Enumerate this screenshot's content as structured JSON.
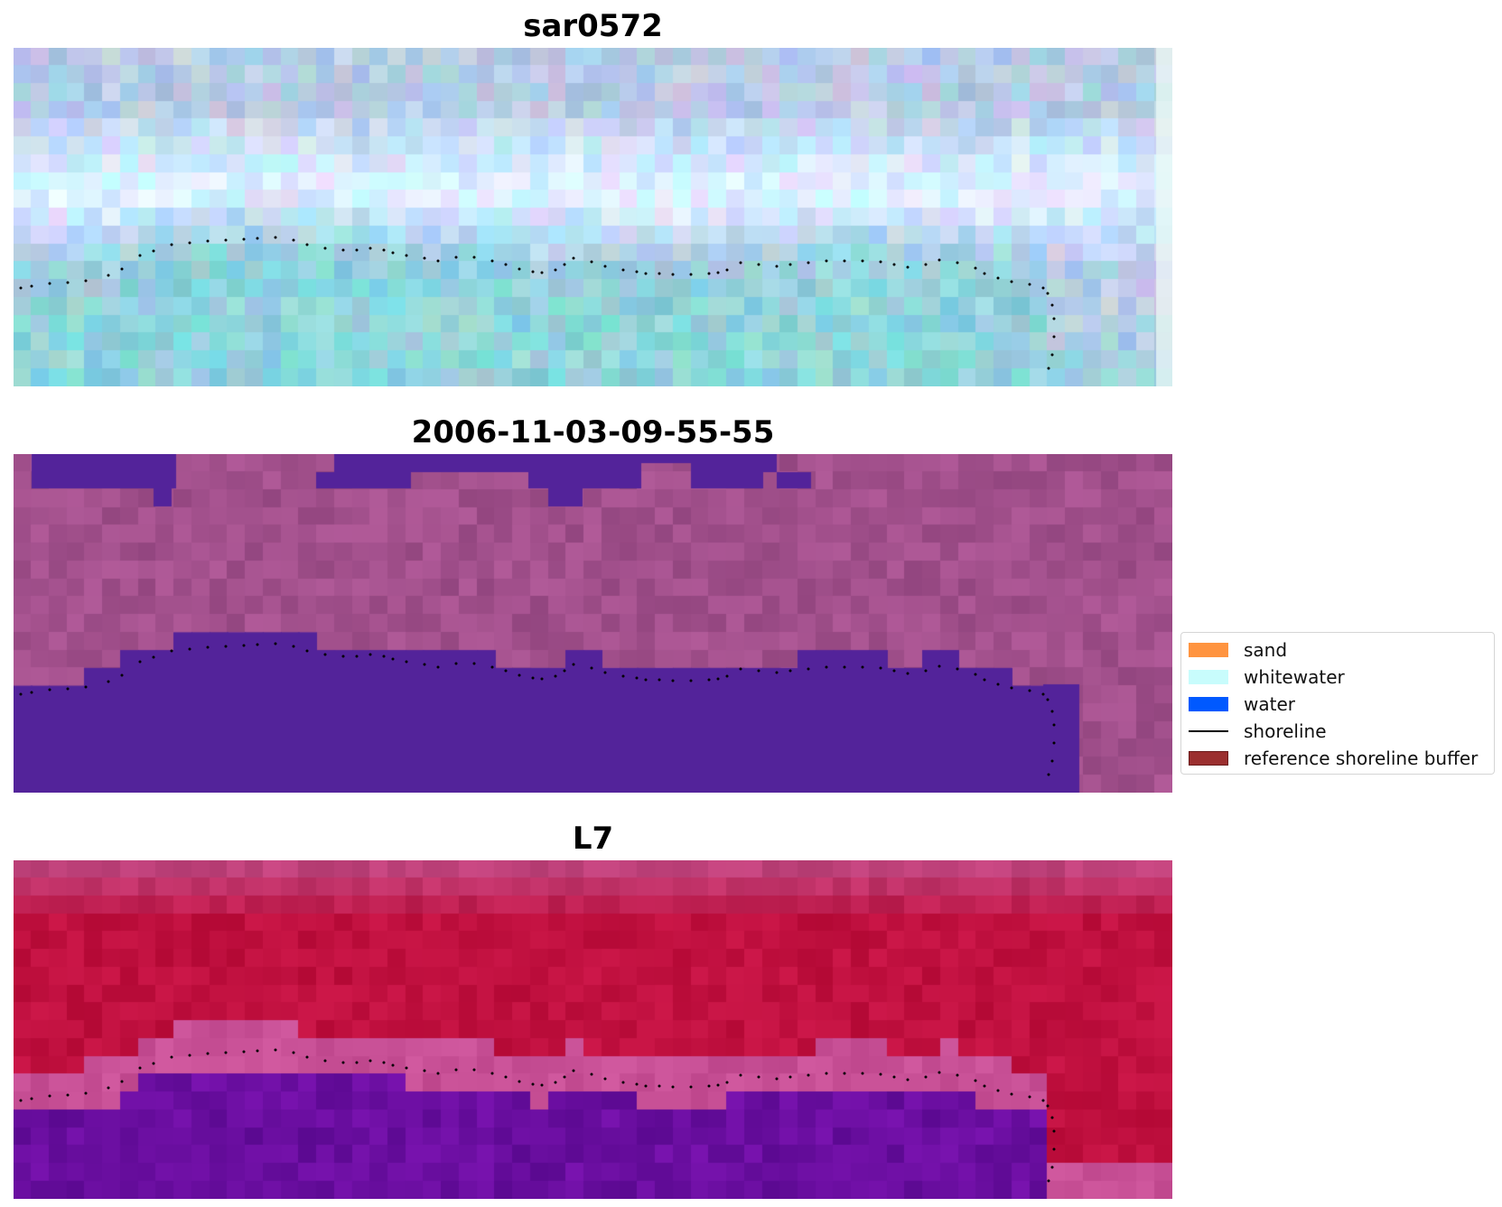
{
  "panels": [
    {
      "title": "sar0572",
      "style": "sar"
    },
    {
      "title": "2006-11-03-09-55-55",
      "style": "classified"
    },
    {
      "title": "L7",
      "style": "falsecolor"
    }
  ],
  "legend": {
    "items": [
      {
        "label": "sand",
        "color": "#ff9440",
        "kind": "patch"
      },
      {
        "label": "whitewater",
        "color": "#c8fcfc",
        "kind": "patch"
      },
      {
        "label": "water",
        "color": "#0059ff",
        "kind": "patch"
      },
      {
        "label": "shoreline",
        "color": "#000000",
        "kind": "line"
      },
      {
        "label": "reference shoreline buffer",
        "color": "#9b2f2f",
        "kind": "patch"
      }
    ]
  },
  "colors": {
    "classified_water": "#53239a",
    "classified_land": "#a2508c",
    "sar_water": "#8fd3db",
    "sar_land": "#b7cbe5",
    "fc_water": "#6a0ea0",
    "fc_land": "#c0103f"
  }
}
